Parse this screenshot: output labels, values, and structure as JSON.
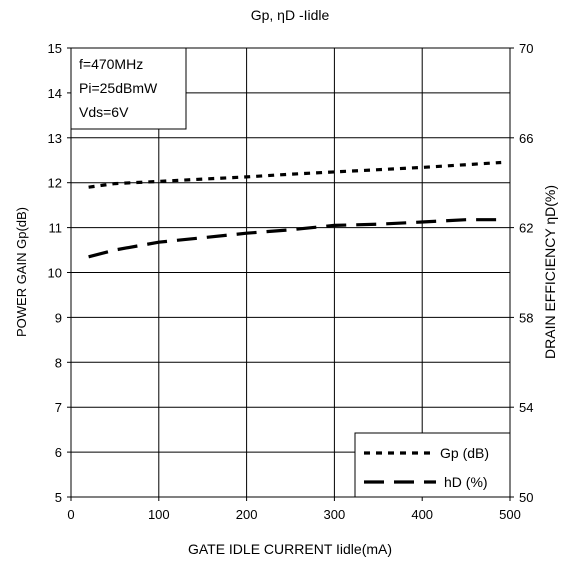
{
  "chart_data": {
    "type": "line",
    "title": "Gp, ηD -Iidle",
    "xlabel": "GATE IDLE CURRENT Iidle(mA)",
    "ylabel_left": "POWER GAIN Gp(dB)",
    "ylabel_right": "DRAIN EFFICIENCY ηD(%)",
    "xlim": [
      0,
      500
    ],
    "ylim_left": [
      5,
      15
    ],
    "ylim_right": [
      50,
      70
    ],
    "x_ticks": [
      "0",
      "100",
      "200",
      "300",
      "400",
      "500"
    ],
    "y_left_ticks": [
      "5",
      "6",
      "7",
      "8",
      "9",
      "10",
      "11",
      "12",
      "13",
      "14",
      "15"
    ],
    "y_right_ticks": [
      "50",
      "54",
      "58",
      "62",
      "66",
      "70"
    ],
    "grid": true,
    "legend_position": "bottom-right",
    "conditions": [
      "f=470MHz",
      "Pi=25dBmW",
      "Vds=6V"
    ],
    "series": [
      {
        "name": "Gp (dB)",
        "axis": "left",
        "style": "short-dash",
        "x": [
          20,
          50,
          100,
          150,
          200,
          250,
          300,
          350,
          400,
          450,
          490
        ],
        "y": [
          11.9,
          11.98,
          12.03,
          12.08,
          12.13,
          12.19,
          12.24,
          12.29,
          12.34,
          12.4,
          12.45
        ]
      },
      {
        "name": "hD (%)",
        "axis": "right",
        "style": "long-dash",
        "x": [
          20,
          50,
          100,
          150,
          200,
          250,
          300,
          350,
          400,
          450,
          490
        ],
        "y": [
          60.7,
          61.0,
          61.35,
          61.55,
          61.75,
          61.9,
          62.1,
          62.15,
          62.25,
          62.35,
          62.35
        ]
      }
    ]
  }
}
